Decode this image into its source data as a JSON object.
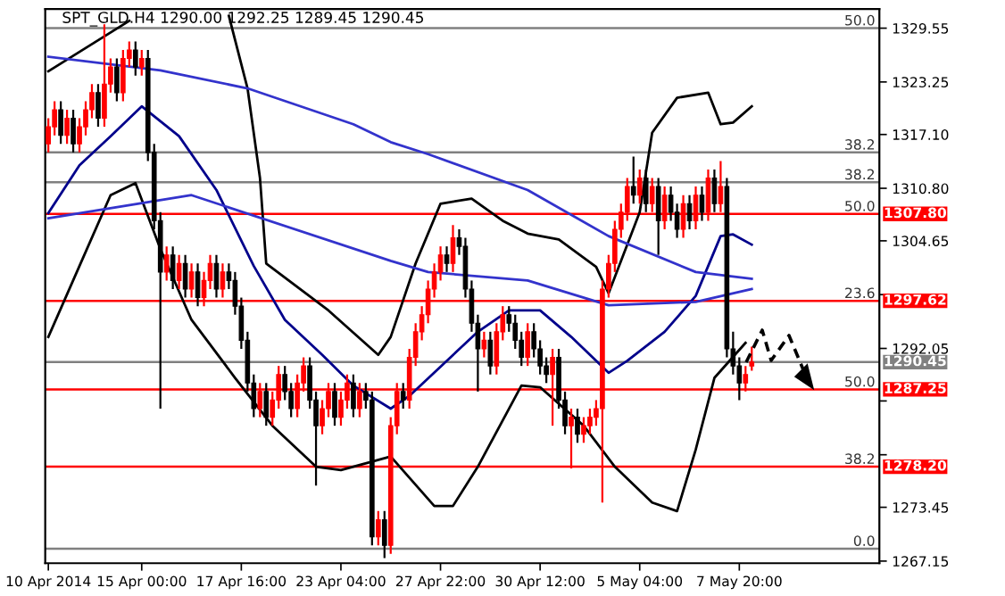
{
  "chart_data": {
    "type": "candlestick",
    "title": "SPT_GLD.H4 1290.00 1292.25 1289.45 1290.45",
    "categories": [
      "10 Apr 2014",
      null,
      null,
      null,
      null,
      null,
      null,
      null,
      null,
      null,
      null,
      null,
      null,
      null,
      null,
      "15 Apr 00:00",
      null,
      null,
      null,
      null,
      null,
      null,
      null,
      null,
      null,
      null,
      null,
      null,
      null,
      null,
      null,
      "17 Apr 16:00",
      null,
      null,
      null,
      null,
      null,
      null,
      null,
      null,
      null,
      null,
      null,
      null,
      null,
      null,
      null,
      "23 Apr 04:00",
      null,
      null,
      null,
      null,
      null,
      null,
      null,
      null,
      null,
      null,
      null,
      null,
      null,
      null,
      null,
      "27 Apr 22:00",
      null,
      null,
      null,
      null,
      null,
      null,
      null,
      null,
      null,
      null,
      null,
      null,
      null,
      null,
      null,
      "30 Apr 12:00",
      null,
      null,
      null,
      null,
      null,
      null,
      null,
      null,
      null,
      null,
      null,
      null,
      null,
      null,
      null,
      "5 May 04:00",
      null,
      null,
      null,
      null,
      null,
      null,
      null,
      null,
      null,
      null,
      null,
      null,
      null,
      null,
      null,
      "7 May 20:00",
      null,
      null,
      null,
      null,
      null,
      null,
      null,
      null,
      null,
      null,
      null,
      null,
      null,
      null,
      null,
      null,
      null,
      null,
      null,
      null,
      null,
      null
    ],
    "colors": [
      "#ff0000",
      "#ff0000",
      "#000000",
      "#ff0000",
      "#000000",
      "#ff0000",
      "#ff0000",
      "#ff0000",
      "#000000",
      "#ff0000",
      "#ff0000",
      "#000000",
      "#ff0000",
      "#ff0000",
      "#000000",
      "#ff0000",
      "#000000",
      "#000000",
      "#000000",
      "#ff0000",
      "#000000",
      "#ff0000",
      "#000000",
      "#ff0000",
      "#000000",
      "#ff0000",
      "#ff0000",
      "#000000",
      "#ff0000",
      "#000000",
      "#000000",
      "#000000",
      "#000000",
      "#000000",
      "#ff0000",
      "#000000",
      "#ff0000",
      "#ff0000",
      "#000000",
      "#000000",
      "#ff0000",
      "#ff0000",
      "#000000",
      "#000000",
      "#ff0000",
      "#ff0000",
      "#000000",
      "#ff0000",
      "#ff0000",
      "#000000",
      "#ff0000",
      "#000000",
      "#000000",
      "#ff0000",
      "#000000",
      "#ff0000",
      "#ff0000",
      "#000000",
      "#ff0000",
      "#ff0000",
      "#ff0000",
      "#ff0000",
      "#ff0000",
      "#ff0000",
      "#000000",
      "#ff0000",
      "#000000",
      "#000000",
      "#000000",
      "#000000",
      "#ff0000",
      "#000000",
      "#ff0000",
      "#ff0000",
      "#000000",
      "#000000",
      "#000000",
      "#ff0000",
      "#000000",
      "#000000",
      "#000000",
      "#ff0000",
      "#000000",
      "#000000",
      "#ff0000",
      "#000000",
      "#ff0000",
      "#ff0000",
      "#ff0000",
      "#ff0000",
      "#ff0000",
      "#ff0000",
      "#ff0000",
      "#ff0000",
      "#000000",
      "#ff0000",
      "#000000",
      "#ff0000",
      "#000000",
      "#ff0000",
      "#000000",
      "#000000",
      "#ff0000",
      "#000000",
      "#ff0000",
      "#000000",
      "#ff0000",
      "#000000",
      "#ff0000",
      "#000000",
      "#000000",
      "#000000",
      "#ff0000",
      "#ff0000",
      null,
      null,
      null,
      null,
      null,
      null,
      null,
      null,
      null,
      null,
      null,
      null,
      null,
      null,
      null,
      null,
      null,
      null,
      null,
      null
    ],
    "ohlc": [
      [
        1316,
        1319,
        1315,
        1318
      ],
      [
        1318,
        1321,
        1317,
        1320
      ],
      [
        1320,
        1321,
        1316,
        1317
      ],
      [
        1317,
        1320,
        1316,
        1319
      ],
      [
        1319,
        1320,
        1315,
        1316
      ],
      [
        1316,
        1319,
        1315,
        1318
      ],
      [
        1318,
        1321,
        1317,
        1320
      ],
      [
        1320,
        1323,
        1319,
        1322
      ],
      [
        1322,
        1323,
        1318,
        1319
      ],
      [
        1319,
        1330,
        1318,
        1323
      ],
      [
        1323,
        1326,
        1322,
        1325
      ],
      [
        1325,
        1326,
        1321,
        1322
      ],
      [
        1322,
        1327,
        1321,
        1326
      ],
      [
        1326,
        1328,
        1325,
        1327
      ],
      [
        1327,
        1328,
        1324,
        1325
      ],
      [
        1325,
        1327,
        1324,
        1326
      ],
      [
        1326,
        1327,
        1314,
        1315
      ],
      [
        1315,
        1316,
        1306,
        1307
      ],
      [
        1307,
        1308,
        1285,
        1301
      ],
      [
        1301,
        1304,
        1300,
        1303
      ],
      [
        1303,
        1304,
        1299,
        1300
      ],
      [
        1300,
        1303,
        1299,
        1302
      ],
      [
        1302,
        1303,
        1298,
        1299
      ],
      [
        1299,
        1302,
        1298,
        1301
      ],
      [
        1301,
        1302,
        1297,
        1298
      ],
      [
        1298,
        1301,
        1297,
        1300
      ],
      [
        1300,
        1303,
        1299,
        1302
      ],
      [
        1302,
        1303,
        1298,
        1299
      ],
      [
        1299,
        1302,
        1298,
        1301
      ],
      [
        1301,
        1302,
        1299,
        1300
      ],
      [
        1300,
        1301,
        1296,
        1297
      ],
      [
        1297,
        1298,
        1292,
        1293
      ],
      [
        1293,
        1294,
        1287,
        1288
      ],
      [
        1288,
        1289,
        1284,
        1285
      ],
      [
        1285,
        1288,
        1284,
        1287
      ],
      [
        1287,
        1288,
        1283,
        1284
      ],
      [
        1284,
        1287,
        1283,
        1286
      ],
      [
        1286,
        1290,
        1285,
        1289
      ],
      [
        1289,
        1290,
        1286,
        1287
      ],
      [
        1287,
        1288,
        1284,
        1285
      ],
      [
        1285,
        1289,
        1284,
        1288
      ],
      [
        1288,
        1291,
        1287,
        1290
      ],
      [
        1290,
        1291,
        1285,
        1286
      ],
      [
        1286,
        1287,
        1276,
        1283
      ],
      [
        1283,
        1286,
        1282,
        1285
      ],
      [
        1285,
        1288,
        1284,
        1287
      ],
      [
        1287,
        1288,
        1283,
        1284
      ],
      [
        1284,
        1287,
        1283,
        1286
      ],
      [
        1286,
        1289,
        1285,
        1288
      ],
      [
        1288,
        1289,
        1284,
        1285
      ],
      [
        1285,
        1288,
        1284,
        1287
      ],
      [
        1287,
        1288,
        1285,
        1286
      ],
      [
        1286,
        1287,
        1269,
        1270
      ],
      [
        1270,
        1273,
        1269,
        1272
      ],
      [
        1272,
        1273,
        1267.5,
        1269
      ],
      [
        1269,
        1284,
        1268,
        1283
      ],
      [
        1283,
        1288,
        1282,
        1287
      ],
      [
        1287,
        1288,
        1285,
        1286
      ],
      [
        1286,
        1292,
        1285,
        1291
      ],
      [
        1291,
        1295,
        1290,
        1294
      ],
      [
        1294,
        1297,
        1293,
        1296
      ],
      [
        1296,
        1300,
        1295,
        1299
      ],
      [
        1299,
        1302,
        1298,
        1301
      ],
      [
        1301,
        1304,
        1300,
        1303
      ],
      [
        1303,
        1304,
        1301,
        1302
      ],
      [
        1302,
        1306.5,
        1301,
        1305
      ],
      [
        1305,
        1306,
        1303,
        1304
      ],
      [
        1304,
        1305,
        1298,
        1299
      ],
      [
        1299,
        1300,
        1294,
        1295
      ],
      [
        1295,
        1296,
        1287,
        1292
      ],
      [
        1292,
        1294,
        1291,
        1293
      ],
      [
        1293,
        1294,
        1289,
        1290
      ],
      [
        1290,
        1295,
        1289,
        1294
      ],
      [
        1294,
        1297,
        1293,
        1296
      ],
      [
        1296,
        1297,
        1294,
        1295
      ],
      [
        1295,
        1296,
        1292,
        1293
      ],
      [
        1293,
        1294,
        1290,
        1291
      ],
      [
        1291,
        1295,
        1290,
        1294
      ],
      [
        1294,
        1295,
        1291,
        1292
      ],
      [
        1292,
        1293,
        1289,
        1290
      ],
      [
        1290,
        1291,
        1288,
        1289
      ],
      [
        1289,
        1292,
        1283,
        1291
      ],
      [
        1291,
        1292,
        1285,
        1286
      ],
      [
        1286,
        1287,
        1282,
        1283
      ],
      [
        1283,
        1285,
        1278,
        1284
      ],
      [
        1284,
        1285,
        1281,
        1282
      ],
      [
        1282,
        1284,
        1281,
        1283
      ],
      [
        1283,
        1285,
        1282,
        1284
      ],
      [
        1284,
        1286,
        1283,
        1285
      ],
      [
        1285,
        1300,
        1274,
        1299
      ],
      [
        1299,
        1303,
        1298,
        1302
      ],
      [
        1302,
        1307,
        1301,
        1306
      ],
      [
        1306,
        1309,
        1305,
        1308
      ],
      [
        1308,
        1312,
        1307,
        1311
      ],
      [
        1311,
        1314.5,
        1309,
        1310
      ],
      [
        1310,
        1313,
        1309,
        1312
      ],
      [
        1312,
        1313,
        1308,
        1309
      ],
      [
        1309,
        1312,
        1308,
        1311
      ],
      [
        1311,
        1312,
        1303,
        1307
      ],
      [
        1307,
        1311,
        1306,
        1310
      ],
      [
        1310,
        1311,
        1307,
        1308
      ],
      [
        1308,
        1309,
        1305,
        1306
      ],
      [
        1306,
        1310,
        1305,
        1309
      ],
      [
        1309,
        1310,
        1306,
        1307
      ],
      [
        1307,
        1311,
        1306,
        1310
      ],
      [
        1310,
        1311,
        1307,
        1308
      ],
      [
        1308,
        1313,
        1307,
        1312
      ],
      [
        1312,
        1313,
        1308,
        1309
      ],
      [
        1309,
        1314,
        1308,
        1311
      ],
      [
        1311,
        1312,
        1291,
        1292
      ],
      [
        1292,
        1294,
        1289,
        1290
      ],
      [
        1290,
        1291,
        1286,
        1288
      ],
      [
        1288,
        1290,
        1287,
        1289
      ],
      [
        1290.0,
        1292.25,
        1289.45,
        1290.45
      ],
      null,
      null,
      null,
      null,
      null,
      null,
      null,
      null,
      null,
      null,
      null,
      null,
      null,
      null,
      null,
      null,
      null,
      null,
      null,
      null
    ],
    "series": [
      {
        "type": "line",
        "color": "#000000",
        "values": [
          1324.5,
          null,
          null,
          null,
          null,
          null,
          null,
          null,
          null,
          null,
          null,
          null,
          null,
          1330.4,
          null,
          null,
          null,
          null,
          null,
          null,
          null,
          null,
          null,
          null,
          null,
          null,
          null,
          null,
          null,
          null,
          null,
          null,
          null,
          null,
          null,
          null,
          null,
          null,
          null,
          null,
          null,
          null,
          null,
          null,
          null,
          null,
          null,
          null,
          null,
          null,
          null,
          null,
          null,
          null,
          null,
          null,
          null,
          null,
          null,
          null,
          null,
          null,
          null,
          null,
          null,
          null,
          null,
          null,
          null,
          null,
          null,
          null,
          null,
          null,
          null,
          null,
          null,
          null,
          null,
          null,
          null,
          null,
          null,
          null,
          null,
          null,
          null,
          null,
          null,
          null,
          null,
          null,
          null,
          null,
          null,
          null,
          null,
          null,
          null,
          null,
          null,
          null,
          null,
          null,
          null,
          null,
          null,
          null,
          null,
          null,
          null,
          null,
          null,
          null,
          null,
          null,
          null,
          null,
          null,
          null,
          null,
          null,
          null,
          null,
          null,
          null,
          null,
          null,
          null,
          null,
          null,
          null,
          null,
          null
        ]
      },
      {
        "type": "line",
        "color": "#000000",
        "values": [
          null,
          null,
          null,
          null,
          null,
          null,
          null,
          null,
          null,
          null,
          null,
          null,
          null,
          null,
          null,
          null,
          null,
          null,
          null,
          null,
          null,
          null,
          null,
          null,
          null,
          null,
          null,
          null,
          null,
          1331,
          null,
          null,
          1322.5,
          null,
          1312,
          1302,
          null,
          null,
          null,
          null,
          null,
          null,
          null,
          null,
          null,
          1296.5,
          null,
          null,
          null,
          null,
          null,
          null,
          null,
          1291.3,
          null,
          1293.4,
          null,
          null,
          null,
          1302,
          null,
          null,
          null,
          1309,
          null,
          null,
          null,
          null,
          1309.6,
          null,
          null,
          null,
          null,
          1307,
          null,
          null,
          null,
          1305.5,
          null,
          null,
          null,
          null,
          1304.8,
          null,
          null,
          null,
          null,
          null,
          1301.6,
          null,
          1298.5,
          null,
          null,
          null,
          null,
          1308,
          null,
          1317.3,
          null,
          null,
          null,
          1321.4,
          null,
          null,
          null,
          null,
          1322,
          null,
          1318.3,
          null,
          1318.5,
          null,
          null,
          1320.4,
          null,
          null,
          null,
          null,
          null,
          null,
          null,
          null,
          null,
          null,
          null,
          null,
          null,
          null,
          null,
          null,
          null,
          null,
          null,
          null
        ]
      },
      {
        "type": "line",
        "color": "#000000",
        "values": [
          1293.4,
          null,
          null,
          null,
          null,
          1301.7,
          null,
          null,
          null,
          null,
          1310,
          null,
          null,
          null,
          1311.4,
          null,
          null,
          null,
          1303.7,
          null,
          null,
          null,
          null,
          1295.4,
          null,
          null,
          null,
          null,
          null,
          null,
          1288.6,
          null,
          null,
          null,
          null,
          null,
          1283,
          null,
          null,
          null,
          null,
          null,
          null,
          1278.2,
          null,
          null,
          null,
          1277.8,
          null,
          null,
          null,
          null,
          1278.8,
          null,
          null,
          1279.4,
          null,
          null,
          null,
          null,
          null,
          null,
          1273.6,
          null,
          null,
          1273.6,
          null,
          null,
          null,
          1278.2,
          null,
          null,
          null,
          null,
          null,
          null,
          1287.7,
          null,
          null,
          1287.5,
          null,
          null,
          null,
          null,
          null,
          null,
          1283,
          null,
          null,
          null,
          null,
          1278.2,
          null,
          null,
          null,
          null,
          null,
          1274,
          null,
          null,
          null,
          1273,
          null,
          null,
          1280.2,
          null,
          null,
          1288.6,
          null,
          null,
          null,
          null,
          1292.7,
          null,
          null,
          null,
          null,
          null,
          null,
          null,
          null,
          null,
          null,
          null,
          null,
          null,
          null,
          null,
          null,
          null,
          null,
          null,
          null,
          null
        ]
      },
      {
        "type": "line",
        "color": "#00008b",
        "values": [
          1307.9,
          null,
          null,
          null,
          null,
          1313.5,
          null,
          null,
          null,
          null,
          1316.9,
          null,
          null,
          null,
          null,
          1320.4,
          null,
          null,
          null,
          null,
          null,
          1316.9,
          null,
          null,
          null,
          null,
          null,
          1310.6,
          null,
          null,
          null,
          null,
          null,
          1301.7,
          null,
          null,
          null,
          null,
          1295.4,
          null,
          null,
          null,
          null,
          null,
          1291.3,
          null,
          null,
          null,
          null,
          1287.7,
          null,
          null,
          null,
          null,
          null,
          1285,
          null,
          null,
          1286.5,
          null,
          null,
          null,
          null,
          null,
          1290.6,
          null,
          null,
          null,
          null,
          1294,
          null,
          null,
          null,
          null,
          1296.5,
          null,
          null,
          null,
          null,
          1296.5,
          null,
          null,
          null,
          null,
          1293.4,
          null,
          null,
          null,
          null,
          null,
          1289.2,
          null,
          null,
          1290.6,
          null,
          null,
          null,
          null,
          null,
          1294,
          null,
          null,
          null,
          null,
          1298.2,
          null,
          null,
          null,
          1305.2,
          null,
          1305.4,
          null,
          null,
          1304.2,
          null,
          null,
          null,
          null,
          null,
          null,
          null,
          null,
          null,
          null,
          null,
          null,
          null,
          null,
          null,
          null,
          null,
          null,
          null,
          null
        ]
      },
      {
        "type": "line",
        "color": "#3333cc",
        "values": [
          1326.2,
          null,
          null,
          null,
          null,
          null,
          null,
          null,
          null,
          null,
          null,
          null,
          null,
          null,
          null,
          null,
          null,
          null,
          1324.6,
          null,
          null,
          null,
          null,
          null,
          null,
          null,
          null,
          null,
          null,
          null,
          null,
          null,
          1322.5,
          null,
          null,
          null,
          null,
          null,
          null,
          null,
          null,
          null,
          null,
          null,
          null,
          null,
          null,
          null,
          null,
          1318.3,
          null,
          null,
          null,
          null,
          null,
          1316.2,
          null,
          null,
          null,
          null,
          null,
          1314.8,
          null,
          null,
          null,
          null,
          null,
          null,
          null,
          null,
          null,
          null,
          null,
          null,
          null,
          null,
          null,
          1310.6,
          null,
          null,
          null,
          null,
          null,
          null,
          null,
          null,
          null,
          null,
          null,
          null,
          1305.2,
          null,
          null,
          null,
          null,
          null,
          null,
          null,
          null,
          null,
          null,
          null,
          null,
          null,
          1301,
          null,
          null,
          null,
          null,
          null,
          null,
          null,
          null,
          1300.2,
          null,
          null,
          null,
          null,
          null,
          null,
          null,
          null,
          null,
          null,
          null,
          null,
          null,
          null,
          null,
          null,
          null,
          null,
          null,
          null
        ]
      },
      {
        "type": "line",
        "color": "#3333cc",
        "values": [
          1307.3,
          null,
          null,
          null,
          null,
          null,
          null,
          null,
          null,
          null,
          null,
          null,
          null,
          null,
          null,
          null,
          null,
          null,
          null,
          null,
          null,
          null,
          null,
          1310,
          null,
          null,
          null,
          null,
          null,
          null,
          null,
          null,
          null,
          null,
          null,
          null,
          null,
          null,
          null,
          null,
          null,
          null,
          null,
          null,
          null,
          null,
          null,
          null,
          null,
          null,
          null,
          null,
          null,
          null,
          null,
          1302.3,
          null,
          null,
          null,
          null,
          null,
          1301,
          null,
          null,
          null,
          null,
          null,
          null,
          null,
          null,
          null,
          null,
          null,
          null,
          null,
          null,
          null,
          1300,
          null,
          null,
          null,
          null,
          null,
          null,
          null,
          null,
          null,
          null,
          null,
          null,
          1297.1,
          null,
          null,
          null,
          null,
          null,
          null,
          null,
          null,
          null,
          null,
          null,
          null,
          null,
          1297.5,
          null,
          null,
          null,
          null,
          null,
          null,
          null,
          null,
          1299,
          null,
          null,
          null,
          null,
          null,
          null,
          null,
          null,
          null,
          null,
          null,
          null,
          null,
          null,
          null,
          null,
          null,
          null,
          null,
          null
        ]
      }
    ],
    "ylim": [
      1266.9,
      1331.8
    ],
    "yticks": [
      1329.55,
      1323.25,
      {
        "value": 1317.1,
        "label": "1317.10"
      },
      {
        "value": 1310.8,
        "label": "1310.80"
      },
      1304.65,
      {
        "value": 1298.35,
        "label": null
      },
      1292.05,
      {
        "value": 1285.9,
        "label": null
      },
      {
        "value": 1279.6,
        "label": null
      },
      1273.45,
      1267.15
    ],
    "ref_lines": [
      {
        "axis": "y",
        "value": 1329.55,
        "color": "#808080"
      },
      {
        "axis": "y",
        "value": 1315.0,
        "color": "#808080"
      },
      {
        "axis": "y",
        "value": 1311.5,
        "color": "#808080"
      },
      {
        "axis": "y",
        "value": 1307.8,
        "label": "1307.80",
        "color": "#ff0000"
      },
      {
        "axis": "y",
        "value": 1297.62,
        "label": "1297.62",
        "color": "#ff0000"
      },
      {
        "axis": "y",
        "value": 1290.45,
        "label": "1290.45",
        "color": "#808080"
      },
      {
        "axis": "y",
        "value": 1287.25,
        "label": "1287.25",
        "color": "#ff0000"
      },
      {
        "axis": "y",
        "value": 1278.2,
        "label": "1278.20",
        "color": "#ff0000"
      },
      {
        "axis": "y",
        "value": 1268.6,
        "color": "#808080"
      }
    ],
    "annotations": [
      {
        "text": "50.0",
        "y": 1329.55
      },
      {
        "text": "38.2",
        "y": 1315.0
      },
      {
        "text": "38.2",
        "y": 1311.5
      },
      {
        "text": "50.0",
        "y": 1307.8
      },
      {
        "text": "23.6",
        "y": 1297.62
      },
      {
        "text": "50.0",
        "y": 1287.25
      },
      {
        "text": "38.2",
        "y": 1278.2
      },
      {
        "text": "0.0",
        "y": 1268.6
      }
    ]
  }
}
